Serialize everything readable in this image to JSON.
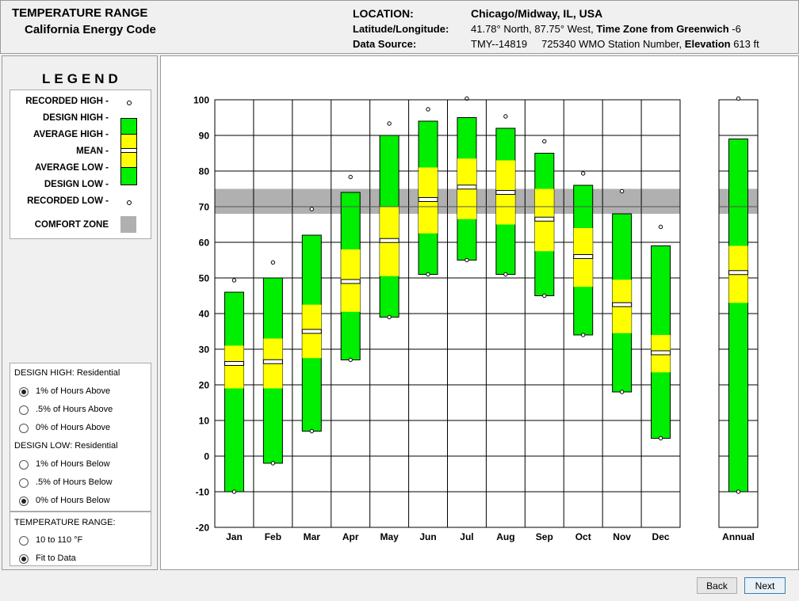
{
  "header": {
    "title": "TEMPERATURE RANGE",
    "subtitle": "California Energy Code",
    "location_label": "LOCATION:",
    "location_value": "Chicago/Midway, IL, USA",
    "latlon_label": "Latitude/Longitude:",
    "latlon_value": "41.78° North, 87.75° West,",
    "timezone_label": "Time Zone from Greenwich",
    "timezone_value": "-6",
    "datasource_label": "Data Source:",
    "datasource_value": "TMY--14819",
    "wmo_value": "725340 WMO Station Number,",
    "elevation_label": "Elevation",
    "elevation_value": "613 ft"
  },
  "legend": {
    "title": "LEGEND",
    "recorded_high": "RECORDED HIGH -",
    "design_high": "DESIGN HIGH -",
    "average_high": "AVERAGE HIGH -",
    "mean": "MEAN -",
    "average_low": "AVERAGE LOW -",
    "design_low": "DESIGN LOW -",
    "recorded_low": "RECORDED LOW -",
    "comfort_zone": "COMFORT ZONE"
  },
  "design_high": {
    "heading": "DESIGN HIGH:  Residential",
    "options": [
      "1% of Hours Above",
      ".5% of Hours Above",
      "0% of Hours Above"
    ],
    "selected": 0
  },
  "design_low": {
    "heading": "DESIGN LOW:  Residential",
    "options": [
      "1% of Hours Below",
      ".5% of Hours Below",
      "0% of Hours Below"
    ],
    "selected": 2
  },
  "temp_range": {
    "heading": "TEMPERATURE RANGE:",
    "options": [
      "10 to 110 °F",
      "Fit to Data"
    ],
    "selected": 1
  },
  "buttons": {
    "back": "Back",
    "next": "Next"
  },
  "colors": {
    "design": "#00ee00",
    "average": "#ffff00",
    "comfort": "#b0b0b0"
  },
  "chart_data": {
    "type": "range-bar",
    "ylim": [
      -20,
      100
    ],
    "yticks": [
      -20,
      -10,
      0,
      10,
      20,
      30,
      40,
      50,
      60,
      70,
      80,
      90,
      100
    ],
    "comfort_zone": [
      68,
      75
    ],
    "comfort_line": 70,
    "categories": [
      "Jan",
      "Feb",
      "Mar",
      "Apr",
      "May",
      "Jun",
      "Jul",
      "Aug",
      "Sep",
      "Oct",
      "Nov",
      "Dec"
    ],
    "series": [
      {
        "cat": "Jan",
        "recorded_high": 48,
        "design_high": 46,
        "average_high": 31,
        "mean": 26,
        "average_low": 19,
        "design_low": -10,
        "recorded_low": -10
      },
      {
        "cat": "Feb",
        "recorded_high": 53,
        "design_high": 50,
        "average_high": 33,
        "mean": 26.5,
        "average_low": 19,
        "design_low": -2,
        "recorded_low": -2
      },
      {
        "cat": "Mar",
        "recorded_high": 68,
        "design_high": 62,
        "average_high": 42.5,
        "mean": 35,
        "average_low": 27.5,
        "design_low": 7,
        "recorded_low": 7
      },
      {
        "cat": "Apr",
        "recorded_high": 77,
        "design_high": 74,
        "average_high": 58,
        "mean": 49,
        "average_low": 40.5,
        "design_low": 27,
        "recorded_low": 27
      },
      {
        "cat": "May",
        "recorded_high": 92,
        "design_high": 90,
        "average_high": 70,
        "mean": 60.5,
        "average_low": 50.5,
        "design_low": 39,
        "recorded_low": 39
      },
      {
        "cat": "Jun",
        "recorded_high": 96,
        "design_high": 94,
        "average_high": 81,
        "mean": 72,
        "average_low": 62.5,
        "design_low": 51,
        "recorded_low": 51
      },
      {
        "cat": "Jul",
        "recorded_high": 99,
        "design_high": 95,
        "average_high": 83.5,
        "mean": 75.5,
        "average_low": 66.5,
        "design_low": 55,
        "recorded_low": 55
      },
      {
        "cat": "Aug",
        "recorded_high": 94,
        "design_high": 92,
        "average_high": 83,
        "mean": 74,
        "average_low": 65,
        "design_low": 51,
        "recorded_low": 51
      },
      {
        "cat": "Sep",
        "recorded_high": 87,
        "design_high": 85,
        "average_high": 75,
        "mean": 66.5,
        "average_low": 57.5,
        "design_low": 45,
        "recorded_low": 45
      },
      {
        "cat": "Oct",
        "recorded_high": 78,
        "design_high": 76,
        "average_high": 64,
        "mean": 56,
        "average_low": 47.5,
        "design_low": 34,
        "recorded_low": 34
      },
      {
        "cat": "Nov",
        "recorded_high": 73,
        "design_high": 68,
        "average_high": 49.5,
        "mean": 42.5,
        "average_low": 34.5,
        "design_low": 18,
        "recorded_low": 18
      },
      {
        "cat": "Dec",
        "recorded_high": 63,
        "design_high": 59,
        "average_high": 34,
        "mean": 29,
        "average_low": 23.5,
        "design_low": 5,
        "recorded_low": 5
      }
    ],
    "annual": {
      "cat": "Annual",
      "recorded_high": 99,
      "design_high": 89,
      "average_high": 59,
      "mean": 51.5,
      "average_low": 43,
      "design_low": -10,
      "recorded_low": -10
    }
  }
}
